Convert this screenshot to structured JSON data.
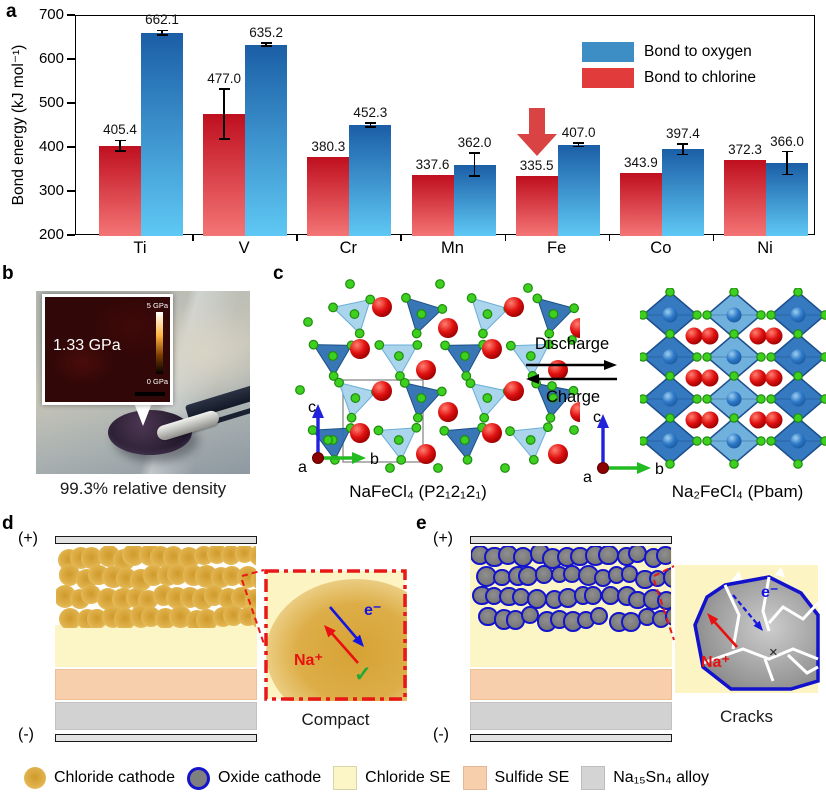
{
  "panels": {
    "a": {
      "label": "a"
    },
    "b": {
      "label": "b"
    },
    "c": {
      "label": "c"
    },
    "d": {
      "label": "d"
    },
    "e": {
      "label": "e"
    }
  },
  "chart_data": {
    "type": "bar",
    "categories": [
      "Ti",
      "V",
      "Cr",
      "Mn",
      "Fe",
      "Co",
      "Ni"
    ],
    "series": [
      {
        "name": "Bond to oxygen",
        "legend_color": "#3e8ec6",
        "color_top": "#1b5ea6",
        "color_bottom": "#5fc8f4",
        "values": [
          662.1,
          635.2,
          452.3,
          362.0,
          407.0,
          397.4,
          366.0
        ],
        "errors": [
          5,
          4,
          5,
          26,
          4,
          12,
          26
        ]
      },
      {
        "name": "Bond to chlorine",
        "legend_color": "#e23b3b",
        "color_top": "#bf0f1f",
        "color_bottom": "#f47575",
        "values": [
          405.4,
          477.0,
          380.3,
          337.6,
          335.5,
          343.9,
          372.3
        ],
        "errors": [
          12,
          57,
          0,
          0,
          0,
          0,
          0
        ]
      }
    ],
    "ylabel": "Bond energy (kJ mol⁻¹)",
    "ylim": [
      200,
      700
    ],
    "yticks": [
      200,
      300,
      400,
      500,
      600,
      700
    ],
    "legend_position": "top-right",
    "annotation": {
      "type": "down-arrow",
      "target_category": "Fe",
      "color": "#d94343"
    }
  },
  "panel_b": {
    "inset_value": "1.33 GPa",
    "colorbar_top": "5 GPa",
    "colorbar_bottom": "0 GPa",
    "caption": "99.3% relative density"
  },
  "panel_c": {
    "left_formula": "NaFeCl₄ (P2₁2₁2₁)",
    "right_formula": "Na₂FeCl₄ (Pbam)",
    "forward_label": "Discharge",
    "reverse_label": "Charge",
    "axis_a": "a",
    "axis_b": "b",
    "axis_c": "c"
  },
  "panel_d": {
    "positive": "(+)",
    "negative": "(-)",
    "ion_label": "Na⁺",
    "electron_label": "e⁻",
    "check": "✓",
    "caption": "Compact"
  },
  "panel_e": {
    "positive": "(+)",
    "negative": "(-)",
    "ion_label": "Na⁺",
    "electron_label": "e⁻",
    "cross": "×",
    "caption": "Cracks"
  },
  "legend": {
    "items": [
      {
        "label": "Chloride cathode",
        "swatch": "gold-circle"
      },
      {
        "label": "Oxide cathode",
        "swatch": "oxide-circle"
      },
      {
        "label": "Chloride SE",
        "swatch": "pale-yellow-square"
      },
      {
        "label": "Sulfide SE",
        "swatch": "peach-square"
      },
      {
        "label": "Na₁₅Sn₄ alloy",
        "swatch": "gray-square"
      }
    ]
  },
  "colors": {
    "chloride_cathode": "#ddab42",
    "oxide_cathode_fill": "#7f7f7f",
    "oxide_cathode_ring": "#1414cc",
    "chloride_se": "#fcf6c6",
    "sulfide_se": "#f8cfad",
    "alloy": "#d2d2d2",
    "electrode": "#e2e2e2",
    "inset_border": "#e81818"
  }
}
